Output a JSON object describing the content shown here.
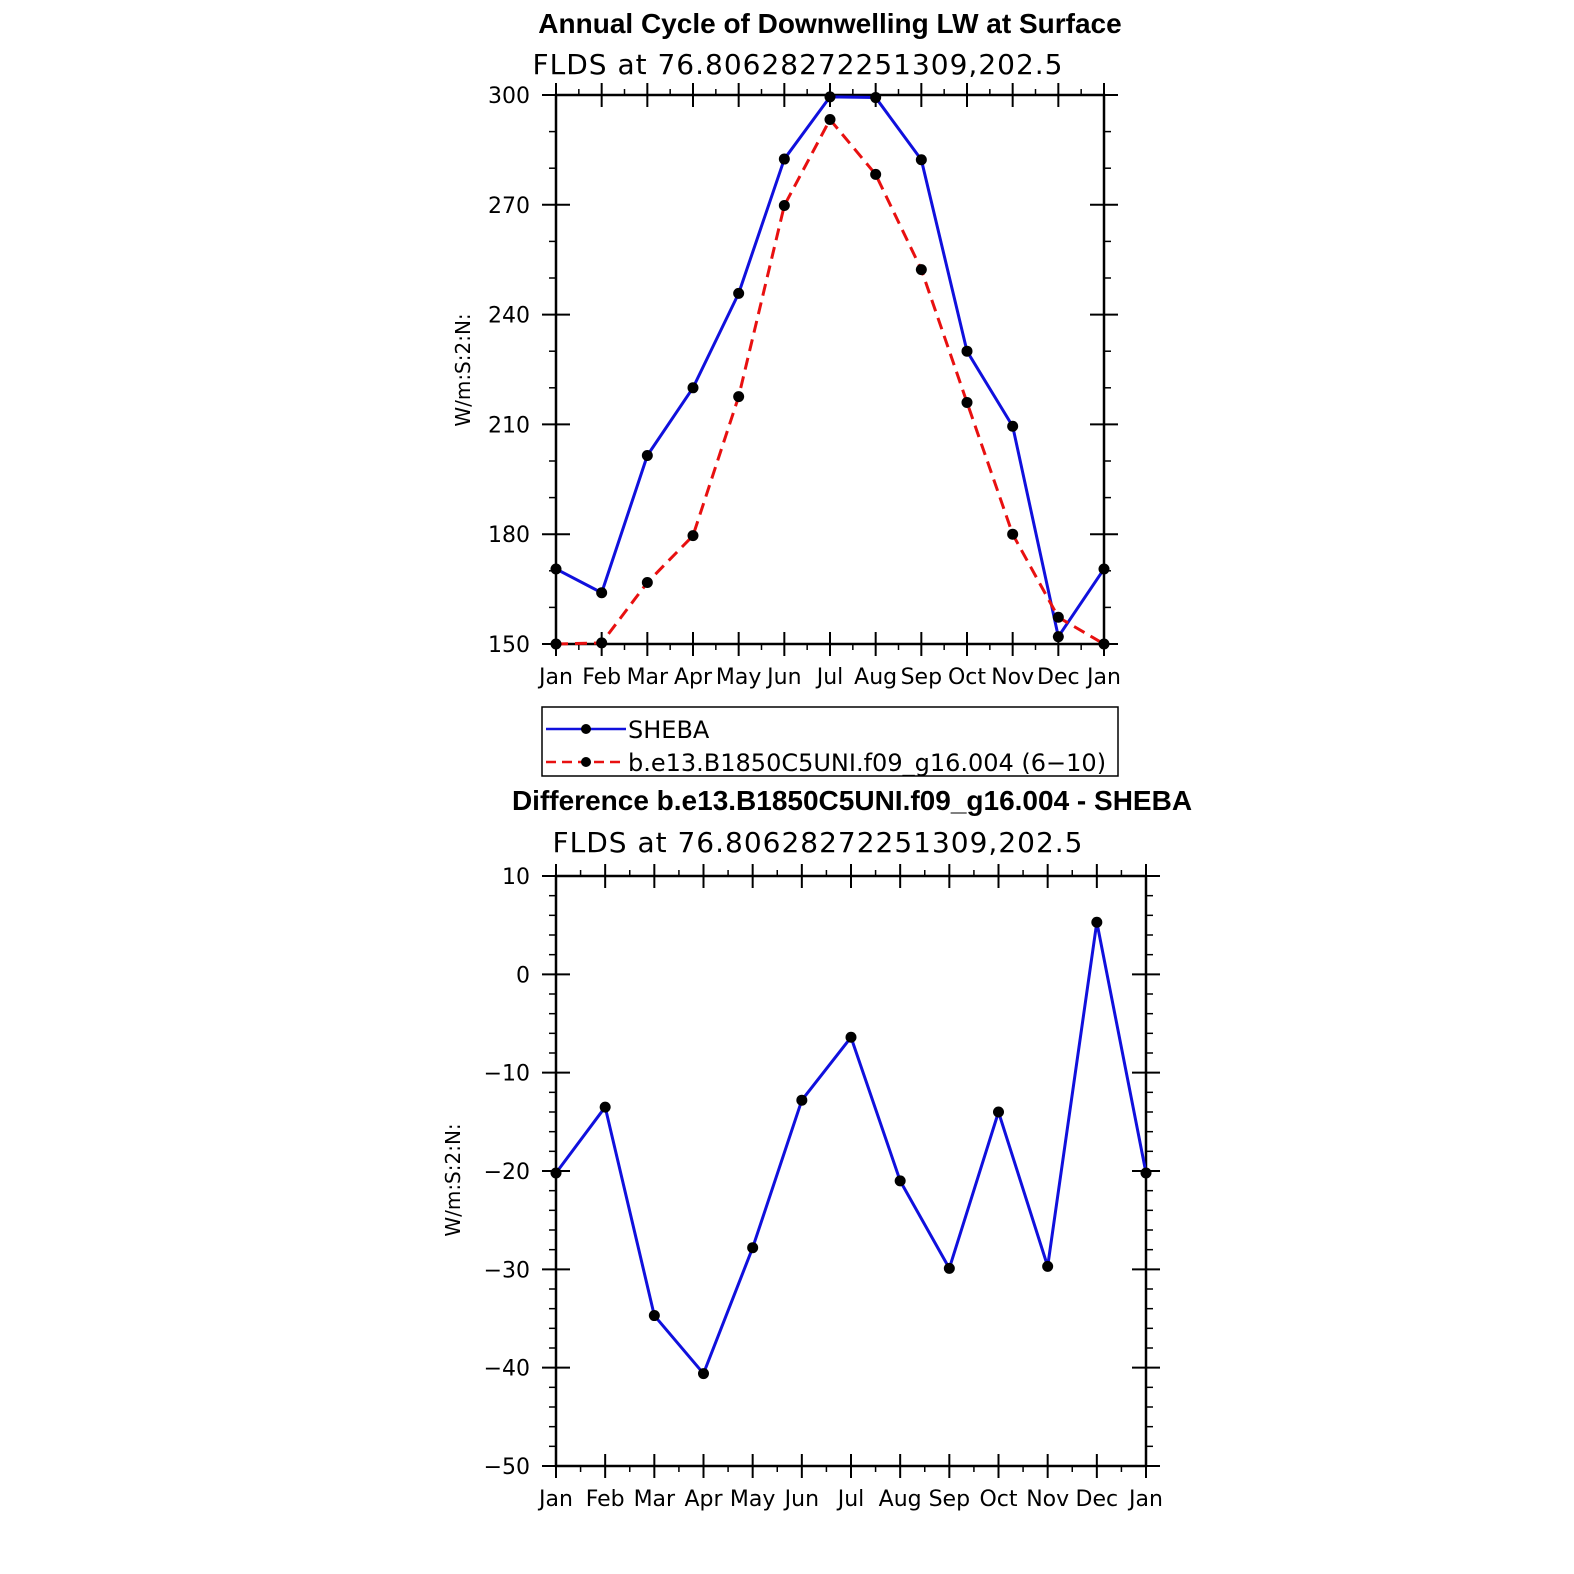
{
  "chart_data": [
    {
      "type": "line",
      "title": "Annual Cycle of Downwelling LW at Surface",
      "subtitle": "FLDS at 76.80628272251309,202.5",
      "ylabel": "W/m:S:2:N:",
      "xlabel": "",
      "categories": [
        "Jan",
        "Feb",
        "Mar",
        "Apr",
        "May",
        "Jun",
        "Jul",
        "Aug",
        "Sep",
        "Oct",
        "Nov",
        "Dec",
        "Jan"
      ],
      "ylim": [
        150,
        300
      ],
      "yticks": [
        "150",
        "180",
        "210",
        "240",
        "270",
        "300"
      ],
      "legend_position": "below",
      "series": [
        {
          "name": "SHEBA",
          "color": "#1010dd",
          "style": "solid",
          "values": [
            170.5,
            164,
            201.5,
            220,
            245.8,
            282.5,
            299.5,
            299.3,
            282.3,
            230,
            209.5,
            152,
            170.5
          ]
        },
        {
          "name": "b.e13.B1850C5UNI.f09_g16.004 (6−10)",
          "color": "#e81010",
          "style": "dashed",
          "values": [
            150,
            150.3,
            166.8,
            179.6,
            217.6,
            269.8,
            293.3,
            278.3,
            252.3,
            216,
            180,
            157.3,
            150
          ]
        }
      ]
    },
    {
      "type": "line",
      "title": "Difference b.e13.B1850C5UNI.f09_g16.004 - SHEBA",
      "subtitle": "FLDS at 76.80628272251309,202.5",
      "ylabel": "W/m:S:2:N:",
      "xlabel": "",
      "categories": [
        "Jan",
        "Feb",
        "Mar",
        "Apr",
        "May",
        "Jun",
        "Jul",
        "Aug",
        "Sep",
        "Oct",
        "Nov",
        "Dec",
        "Jan"
      ],
      "ylim": [
        -50,
        10
      ],
      "yticks": [
        "−50",
        "−40",
        "−30",
        "−20",
        "−10",
        "0",
        "10"
      ],
      "series": [
        {
          "name": "",
          "color": "#1010dd",
          "style": "solid",
          "values": [
            -20.2,
            -13.5,
            -34.7,
            -40.6,
            -27.8,
            -12.8,
            -6.4,
            -21,
            -29.9,
            -14,
            -29.7,
            5.3,
            -20.2
          ]
        }
      ]
    }
  ]
}
